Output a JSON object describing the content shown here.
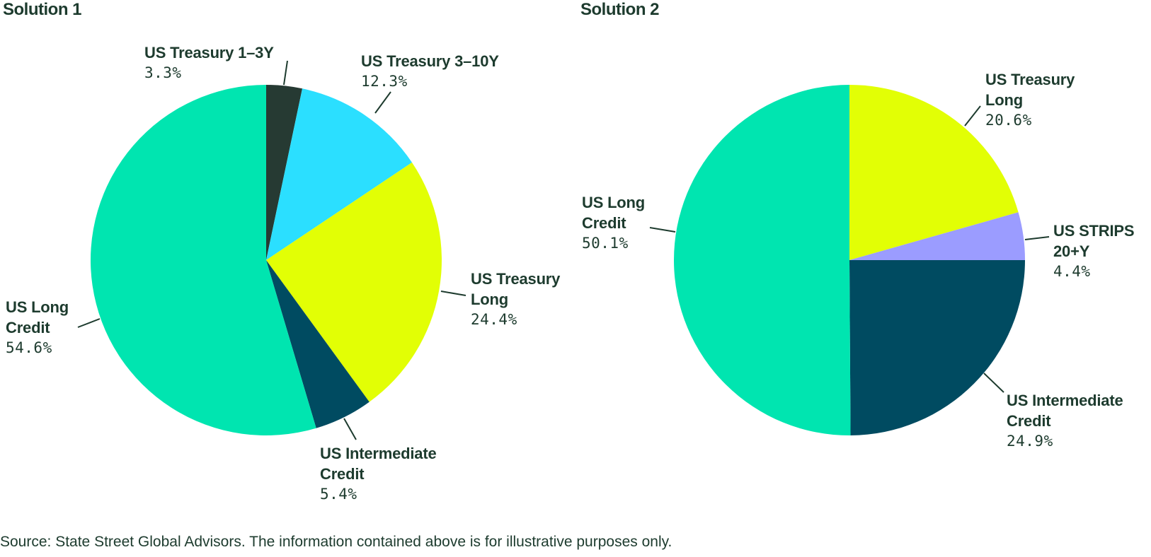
{
  "chart_data": [
    {
      "type": "pie",
      "title": "Solution 1",
      "slices": [
        {
          "label": "US Treasury 1–3Y",
          "value": 3.3,
          "display": "3.3%",
          "color": "#263a33"
        },
        {
          "label": "US Treasury 3–10Y",
          "value": 12.3,
          "display": "12.3%",
          "color": "#2bdfff"
        },
        {
          "label": "US Treasury Long",
          "value": 24.4,
          "display": "24.4%",
          "color": "#e2ff05"
        },
        {
          "label": "US Intermediate Credit",
          "value": 5.4,
          "display": "5.4%",
          "color": "#004b61"
        },
        {
          "label": "US Long Credit",
          "value": 54.6,
          "display": "54.6%",
          "color": "#00e5b0"
        }
      ]
    },
    {
      "type": "pie",
      "title": "Solution 2",
      "slices": [
        {
          "label": "US Treasury Long",
          "value": 20.6,
          "display": "20.6%",
          "color": "#e2ff05"
        },
        {
          "label": "US STRIPS 20+Y",
          "value": 4.4,
          "display": "4.4%",
          "color": "#9b9cff"
        },
        {
          "label": "US Intermediate Credit",
          "value": 24.9,
          "display": "24.9%",
          "color": "#004b61"
        },
        {
          "label": "US Long Credit",
          "value": 50.1,
          "display": "50.1%",
          "color": "#00e5b0"
        }
      ]
    }
  ],
  "footer": {
    "source": "Source: State Street Global Advisors. The information contained above is for illustrative purposes only."
  }
}
